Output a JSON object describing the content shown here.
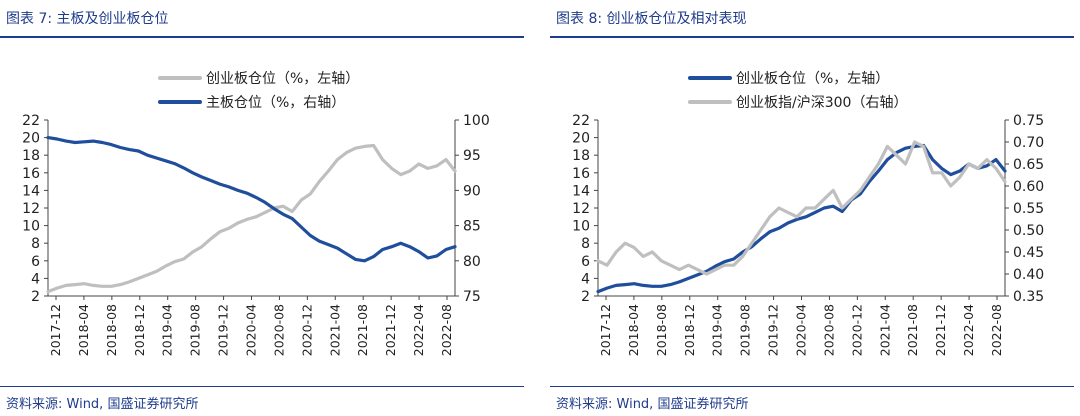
{
  "left": {
    "title": "图表 7:  主板及创业板仓位",
    "source": "资料来源:  Wind,  国盛证券研究所",
    "chart_data": {
      "type": "line",
      "x_ticks": [
        "2017-12",
        "2018-04",
        "2018-08",
        "2018-12",
        "2019-04",
        "2019-08",
        "2019-12",
        "2020-04",
        "2020-08",
        "2020-12",
        "2021-04",
        "2021-08",
        "2021-12",
        "2022-04",
        "2022-08"
      ],
      "left_axis": {
        "min": 2,
        "max": 22,
        "ticks": [
          "2",
          "4",
          "6",
          "8",
          "10",
          "12",
          "14",
          "16",
          "18",
          "20",
          "22"
        ]
      },
      "right_axis": {
        "min": 75,
        "max": 100,
        "ticks": [
          "75",
          "80",
          "85",
          "90",
          "95",
          "100"
        ]
      },
      "series": [
        {
          "name": "创业板仓位（%，左轴）",
          "color": "#bfbfbf",
          "axis": "left",
          "values": [
            2.5,
            2.9,
            3.2,
            3.3,
            3.4,
            3.2,
            3.1,
            3.1,
            3.3,
            3.6,
            4.0,
            4.4,
            4.8,
            5.4,
            5.9,
            6.2,
            7.0,
            7.6,
            8.5,
            9.3,
            9.7,
            10.3,
            10.7,
            11.0,
            11.5,
            12.0,
            12.2,
            11.6,
            12.9,
            13.6,
            15.0,
            16.2,
            17.5,
            18.3,
            18.8,
            19.0,
            19.1,
            17.5,
            16.5,
            15.8,
            16.2,
            17.0,
            16.5,
            16.8,
            17.5,
            16.2
          ]
        },
        {
          "name": "主板仓位（%，右轴）",
          "color": "#1f4e9c",
          "axis": "right",
          "values": [
            97.5,
            97.3,
            97.0,
            96.8,
            96.9,
            97.0,
            96.8,
            96.5,
            96.1,
            95.8,
            95.6,
            95.0,
            94.6,
            94.2,
            93.8,
            93.2,
            92.5,
            91.9,
            91.4,
            90.9,
            90.5,
            90.0,
            89.6,
            89.0,
            88.3,
            87.4,
            86.6,
            86.0,
            84.8,
            83.6,
            82.8,
            82.3,
            81.8,
            81.0,
            80.2,
            80.0,
            80.6,
            81.6,
            82.0,
            82.5,
            82.0,
            81.3,
            80.4,
            80.7,
            81.6,
            82.0
          ]
        }
      ]
    }
  },
  "right": {
    "title": "图表 8:  创业板仓位及相对表现",
    "source": "资料来源:  Wind,  国盛证券研究所",
    "chart_data": {
      "type": "line",
      "x_ticks": [
        "2017-12",
        "2018-04",
        "2018-08",
        "2018-12",
        "2019-04",
        "2019-08",
        "2019-12",
        "2020-04",
        "2020-08",
        "2020-12",
        "2021-04",
        "2021-08",
        "2021-12",
        "2022-04",
        "2022-08"
      ],
      "left_axis": {
        "min": 2,
        "max": 22,
        "ticks": [
          "2",
          "4",
          "6",
          "8",
          "10",
          "12",
          "14",
          "16",
          "18",
          "20",
          "22"
        ]
      },
      "right_axis": {
        "min": 0.35,
        "max": 0.75,
        "ticks": [
          "0.35",
          "0.40",
          "0.45",
          "0.50",
          "0.55",
          "0.60",
          "0.65",
          "0.70",
          "0.75"
        ]
      },
      "series": [
        {
          "name": "创业板仓位（%，左轴）",
          "color": "#1f4e9c",
          "axis": "left",
          "values": [
            2.5,
            2.9,
            3.2,
            3.3,
            3.4,
            3.2,
            3.1,
            3.1,
            3.3,
            3.6,
            4.0,
            4.4,
            4.8,
            5.4,
            5.9,
            6.2,
            7.0,
            7.6,
            8.5,
            9.3,
            9.7,
            10.3,
            10.7,
            11.0,
            11.5,
            12.0,
            12.2,
            11.6,
            12.9,
            13.6,
            15.0,
            16.2,
            17.5,
            18.3,
            18.8,
            19.0,
            19.1,
            17.5,
            16.5,
            15.8,
            16.2,
            17.0,
            16.5,
            16.8,
            17.5,
            16.2
          ]
        },
        {
          "name": "创业板指/沪深300（右轴）",
          "color": "#bfbfbf",
          "axis": "right",
          "values": [
            0.43,
            0.42,
            0.45,
            0.47,
            0.46,
            0.44,
            0.45,
            0.43,
            0.42,
            0.41,
            0.42,
            0.41,
            0.4,
            0.41,
            0.42,
            0.42,
            0.44,
            0.47,
            0.5,
            0.53,
            0.55,
            0.54,
            0.53,
            0.55,
            0.55,
            0.57,
            0.59,
            0.55,
            0.57,
            0.59,
            0.62,
            0.65,
            0.69,
            0.67,
            0.65,
            0.7,
            0.69,
            0.63,
            0.63,
            0.6,
            0.62,
            0.65,
            0.64,
            0.66,
            0.64,
            0.61
          ]
        }
      ]
    }
  }
}
